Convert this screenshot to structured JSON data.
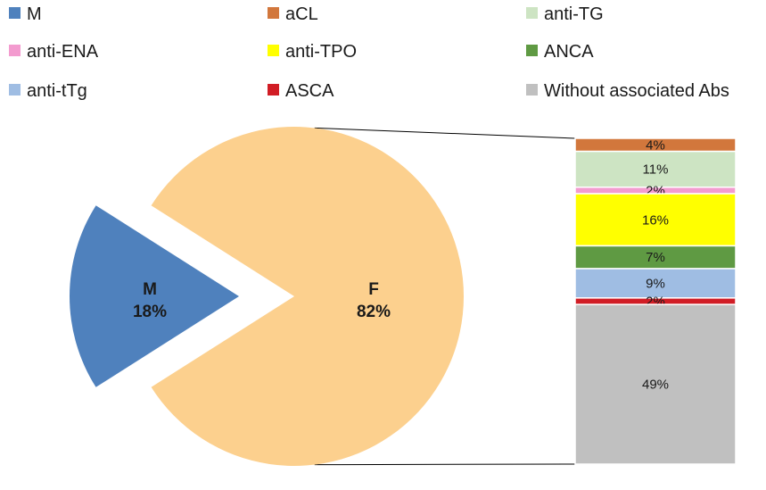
{
  "chart_data": {
    "type": "bar-of-pie",
    "pie": {
      "slices": [
        {
          "name": "M",
          "label": "M",
          "value": 18,
          "display": "18%",
          "color": "#4f81bd"
        },
        {
          "name": "F",
          "label": "F",
          "value": 82,
          "display": "82%",
          "color": "#fcd08e"
        }
      ]
    },
    "bar": {
      "segments": [
        {
          "name": "aCL",
          "value": 4,
          "display": "4%",
          "color": "#d2773c"
        },
        {
          "name": "anti-TG",
          "value": 11,
          "display": "11%",
          "color": "#cde4c3"
        },
        {
          "name": "anti-ENA",
          "value": 2,
          "display": "2%",
          "color": "#f39bcf"
        },
        {
          "name": "anti-TPO",
          "value": 16,
          "display": "16%",
          "color": "#ffff00"
        },
        {
          "name": "ANCA",
          "value": 7,
          "display": "7%",
          "color": "#5f9a43"
        },
        {
          "name": "anti-tTg",
          "value": 9,
          "display": "9%",
          "color": "#9fbde3"
        },
        {
          "name": "ASCA",
          "value": 2,
          "display": "2%",
          "color": "#d11d25"
        },
        {
          "name": "Without associated Abs",
          "value": 49,
          "display": "49%",
          "color": "#c0c0c0"
        }
      ]
    },
    "legend": {
      "placement": "top",
      "items": [
        {
          "label": "M",
          "color": "#4f81bd"
        },
        {
          "label": "aCL",
          "color": "#d2773c"
        },
        {
          "label": "anti-TG",
          "color": "#cde4c3"
        },
        {
          "label": "anti-ENA",
          "color": "#f39bcf"
        },
        {
          "label": "anti-TPO",
          "color": "#ffff00"
        },
        {
          "label": "ANCA",
          "color": "#5f9a43"
        },
        {
          "label": "anti-tTg",
          "color": "#9fbde3"
        },
        {
          "label": "ASCA",
          "color": "#d11d25"
        },
        {
          "label": "Without associated Abs",
          "color": "#c0c0c0"
        }
      ]
    }
  }
}
